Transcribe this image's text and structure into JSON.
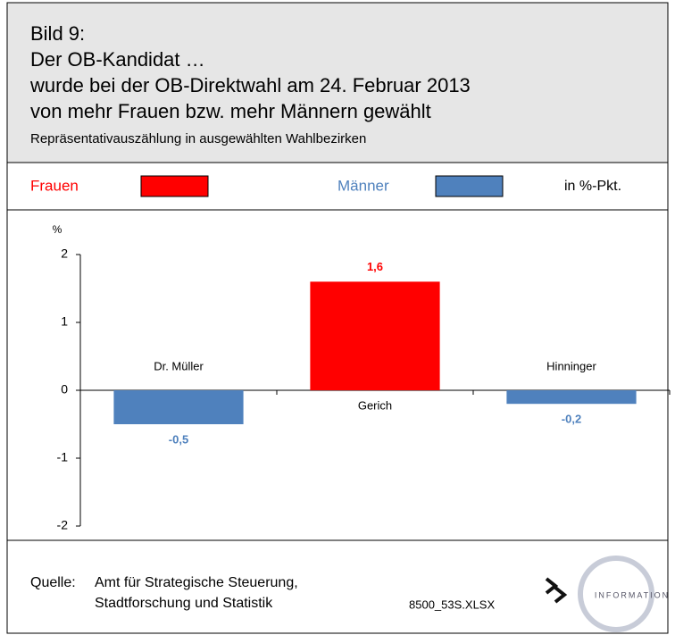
{
  "header": {
    "title_lines": [
      "Bild 9:",
      "Der OB-Kandidat …",
      "wurde bei der OB-Direktwahl am 24. Februar 2013",
      "von mehr Frauen bzw. mehr Männern gewählt"
    ],
    "subtitle": "Repräsentativauszählung in ausgewählten Wahlbezirken"
  },
  "legend": {
    "entries": [
      {
        "name": "Frauen",
        "color": "#ff0000"
      },
      {
        "name": "Männer",
        "color": "#4f81bd"
      }
    ],
    "unit_note": "in %-Pkt."
  },
  "chart_data": {
    "type": "bar",
    "y_axis_label": "%",
    "categories": [
      "Dr. Müller",
      "Gerich",
      "Hinninger"
    ],
    "values": [
      -0.5,
      1.6,
      -0.2
    ],
    "value_labels": [
      "-0,5",
      "1,6",
      "-0,2"
    ],
    "colors": [
      "#4f81bd",
      "#ff0000",
      "#4f81bd"
    ],
    "ylim": [
      -2,
      2
    ],
    "yticks": [
      -2,
      -1,
      0,
      1,
      2
    ]
  },
  "footer": {
    "source_label": "Quelle:",
    "source_lines": [
      "Amt für Strategische Steuerung,",
      "Stadtforschung und Statistik"
    ],
    "file": "8500_53S.XLSX",
    "logo_text": "INFORMATION"
  }
}
